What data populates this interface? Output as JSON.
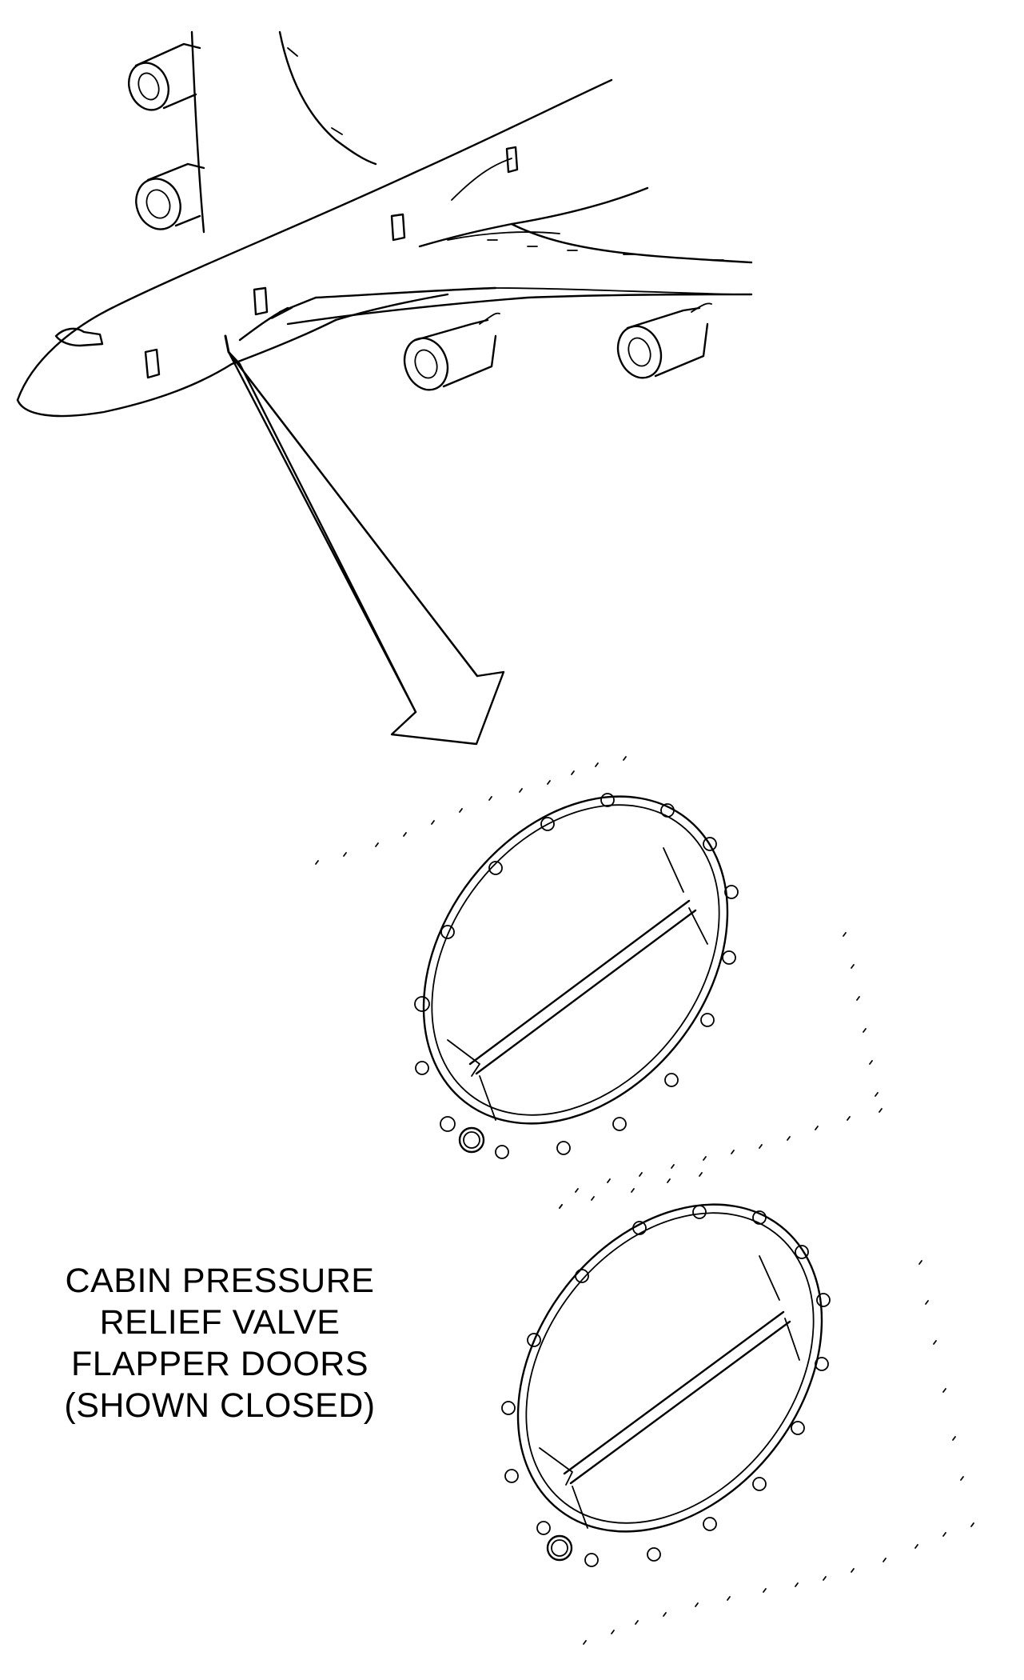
{
  "caption": {
    "lines": [
      "CABIN PRESSURE",
      "RELIEF VALVE",
      "FLAPPER DOORS",
      "(SHOWN CLOSED)"
    ]
  },
  "drawing": {
    "subject": "aircraft-with-relief-valve-detail",
    "color": "#000000",
    "background": "#ffffff"
  }
}
